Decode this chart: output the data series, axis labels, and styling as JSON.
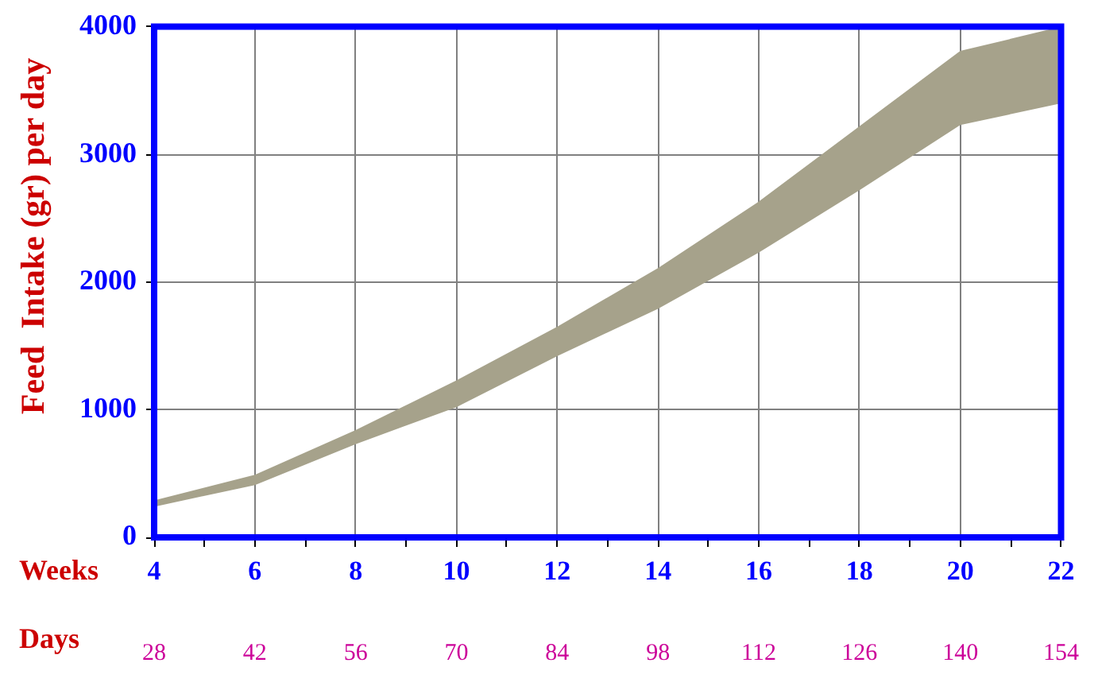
{
  "chart_data": {
    "type": "area",
    "ylabel": "Feed  Intake (gr) per day",
    "xlabel": "Weeks",
    "x2label": "Days",
    "x": [
      4,
      6,
      8,
      10,
      12,
      14,
      16,
      18,
      20,
      22
    ],
    "series": [
      {
        "color": "#a6a28b",
        "values": [
          null,
          null,
          null,
          null,
          null,
          null,
          null,
          null,
          null,
          null
        ],
        "upper": [
          290,
          490,
          840,
          1230,
          1650,
          2110,
          2630,
          3220,
          3810,
          4000
        ],
        "lower": [
          240,
          410,
          730,
          1020,
          1420,
          1790,
          2230,
          2720,
          3230,
          3400
        ]
      }
    ],
    "xlim": [
      4,
      22
    ],
    "xticks": [
      4,
      {
        "value": 5,
        "label": null
      },
      6,
      {
        "value": 7,
        "label": null
      },
      8,
      {
        "value": 9,
        "label": null
      },
      10,
      {
        "value": 11,
        "label": null
      },
      12,
      {
        "value": 13,
        "label": null
      },
      14,
      {
        "value": 15,
        "label": null
      },
      16,
      {
        "value": 17,
        "label": null
      },
      18,
      {
        "value": 19,
        "label": null
      },
      20,
      {
        "value": 21,
        "label": null
      },
      22
    ],
    "ylim": [
      0,
      4000
    ],
    "yticks": [
      0,
      1000,
      2000,
      3000,
      4000
    ],
    "x2lim": [
      28,
      154
    ],
    "x2ticks": [
      28,
      42,
      56,
      70,
      84,
      98,
      112,
      126,
      140,
      154
    ],
    "grid": true
  }
}
